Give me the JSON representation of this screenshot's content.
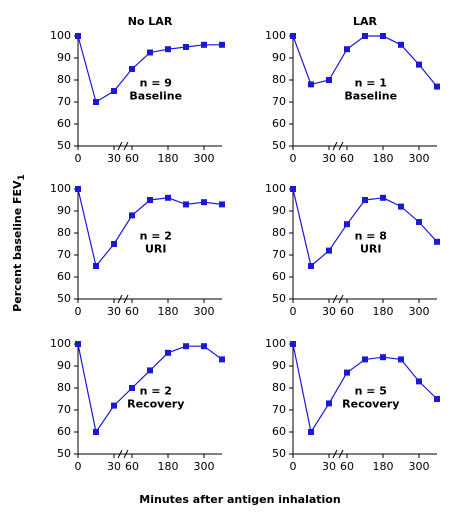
{
  "ylabel": {
    "text": "Percent baseline FEV",
    "subscript": "1"
  },
  "xlabel": "Minutes after antigen inhalation",
  "chart_data": [
    {
      "type": "line",
      "title": "No LAR",
      "x": [
        0,
        15,
        30,
        60,
        120,
        180,
        240,
        300,
        360
      ],
      "values": [
        100,
        70,
        75,
        85,
        92.5,
        94,
        95,
        96,
        96
      ],
      "color": "#1a1ad6",
      "xlim": [
        0,
        360
      ],
      "xticks": [
        0,
        30,
        60,
        180,
        300
      ],
      "xbreak": [
        30,
        60
      ],
      "ylim": [
        50,
        100
      ],
      "yticks": [
        50,
        60,
        70,
        80,
        90,
        100
      ],
      "annotations": [
        "n = 9",
        "Baseline"
      ]
    },
    {
      "type": "line",
      "title": "LAR",
      "x": [
        0,
        15,
        30,
        60,
        120,
        180,
        240,
        300,
        360
      ],
      "values": [
        100,
        78,
        80,
        94,
        100,
        100,
        96,
        87,
        77
      ],
      "color": "#1a1ad6",
      "xlim": [
        0,
        360
      ],
      "xticks": [
        0,
        30,
        60,
        180,
        300
      ],
      "xbreak": [
        30,
        60
      ],
      "ylim": [
        50,
        100
      ],
      "yticks": [
        50,
        60,
        70,
        80,
        90,
        100
      ],
      "annotations": [
        "n = 1",
        "Baseline"
      ]
    },
    {
      "type": "line",
      "x": [
        0,
        15,
        30,
        60,
        120,
        180,
        240,
        300,
        360
      ],
      "values": [
        100,
        65,
        75,
        88,
        95,
        96,
        93,
        94,
        93
      ],
      "color": "#1a1ad6",
      "xlim": [
        0,
        360
      ],
      "xticks": [
        0,
        30,
        60,
        180,
        300
      ],
      "xbreak": [
        30,
        60
      ],
      "ylim": [
        50,
        100
      ],
      "yticks": [
        50,
        60,
        70,
        80,
        90,
        100
      ],
      "annotations": [
        "n = 2",
        "URI"
      ]
    },
    {
      "type": "line",
      "x": [
        0,
        15,
        30,
        60,
        120,
        180,
        240,
        300,
        360
      ],
      "values": [
        100,
        65,
        72,
        84,
        95,
        96,
        92,
        85,
        76
      ],
      "color": "#1a1ad6",
      "xlim": [
        0,
        360
      ],
      "xticks": [
        0,
        30,
        60,
        180,
        300
      ],
      "xbreak": [
        30,
        60
      ],
      "ylim": [
        50,
        100
      ],
      "yticks": [
        50,
        60,
        70,
        80,
        90,
        100
      ],
      "annotations": [
        "n = 8",
        "URI"
      ]
    },
    {
      "type": "line",
      "x": [
        0,
        15,
        30,
        60,
        120,
        180,
        240,
        300,
        360
      ],
      "values": [
        100,
        60,
        72,
        80,
        88,
        96,
        99,
        99,
        93
      ],
      "color": "#1a1ad6",
      "xlim": [
        0,
        360
      ],
      "xticks": [
        0,
        30,
        60,
        180,
        300
      ],
      "xbreak": [
        30,
        60
      ],
      "ylim": [
        50,
        100
      ],
      "yticks": [
        50,
        60,
        70,
        80,
        90,
        100
      ],
      "annotations": [
        "n = 2",
        "Recovery"
      ]
    },
    {
      "type": "line",
      "x": [
        0,
        15,
        30,
        60,
        120,
        180,
        240,
        300,
        360
      ],
      "values": [
        100,
        60,
        73,
        87,
        93,
        94,
        93,
        83,
        75
      ],
      "color": "#1a1ad6",
      "xlim": [
        0,
        360
      ],
      "xticks": [
        0,
        30,
        60,
        180,
        300
      ],
      "xbreak": [
        30,
        60
      ],
      "ylim": [
        50,
        100
      ],
      "yticks": [
        50,
        60,
        70,
        80,
        90,
        100
      ],
      "annotations": [
        "n = 5",
        "Recovery"
      ]
    }
  ]
}
